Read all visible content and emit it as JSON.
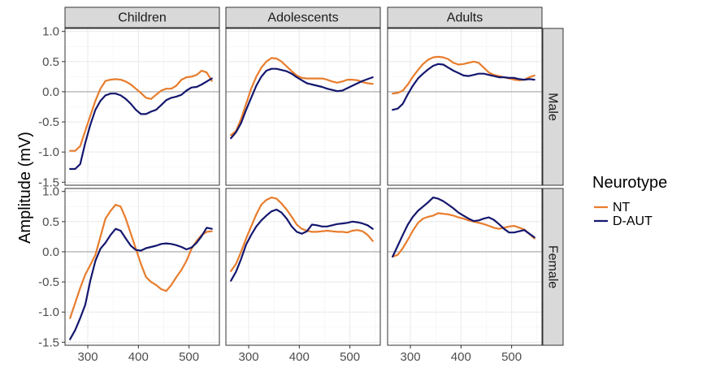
{
  "chart_data": {
    "type": "line",
    "ylabel": "Amplitude (mV)",
    "xlabel": "",
    "xlim": [
      255,
      560
    ],
    "ylim": [
      -1.55,
      1.05
    ],
    "xticks": [
      300,
      400,
      500
    ],
    "xtick_labels": [
      "300",
      "400",
      "500"
    ],
    "yticks": [
      -1.5,
      -1.0,
      -0.5,
      0.0,
      0.5,
      1.0
    ],
    "ytick_labels": [
      "-1.5",
      "-1.0",
      "-0.5",
      "0.0",
      "0.5",
      "1.0"
    ],
    "grid": true,
    "columns": [
      "Children",
      "Adolescents",
      "Adults"
    ],
    "rows": [
      "Male",
      "Female"
    ],
    "legend": {
      "title": "Neurotype",
      "position": "right",
      "entries": [
        {
          "name": "NT",
          "color": "#e87d2d"
        },
        {
          "name": "D-AUT",
          "color": "#14176e"
        }
      ]
    },
    "x": [
      265,
      275,
      285,
      295,
      305,
      315,
      325,
      335,
      345,
      355,
      365,
      375,
      385,
      395,
      405,
      415,
      425,
      435,
      445,
      455,
      465,
      475,
      485,
      495,
      505,
      515,
      525,
      535,
      545
    ],
    "panels": [
      {
        "row": "Male",
        "col": "Children",
        "series": [
          {
            "name": "NT",
            "values": [
              -0.98,
              -0.98,
              -0.9,
              -0.65,
              -0.4,
              -0.15,
              0.05,
              0.18,
              0.2,
              0.21,
              0.2,
              0.17,
              0.12,
              0.05,
              -0.02,
              -0.1,
              -0.12,
              -0.05,
              0.02,
              0.05,
              0.05,
              0.1,
              0.2,
              0.24,
              0.25,
              0.28,
              0.35,
              0.32,
              0.18
            ]
          },
          {
            "name": "D-AUT",
            "values": [
              -1.28,
              -1.28,
              -1.2,
              -0.85,
              -0.55,
              -0.3,
              -0.15,
              -0.06,
              -0.03,
              -0.03,
              -0.06,
              -0.12,
              -0.2,
              -0.3,
              -0.37,
              -0.37,
              -0.33,
              -0.3,
              -0.22,
              -0.14,
              -0.1,
              -0.08,
              -0.05,
              0.02,
              0.07,
              0.08,
              0.12,
              0.17,
              0.22
            ]
          }
        ]
      },
      {
        "row": "Male",
        "col": "Adolescents",
        "series": [
          {
            "name": "NT",
            "values": [
              -0.72,
              -0.65,
              -0.45,
              -0.2,
              0.05,
              0.25,
              0.4,
              0.5,
              0.56,
              0.55,
              0.5,
              0.42,
              0.34,
              0.27,
              0.23,
              0.22,
              0.22,
              0.22,
              0.22,
              0.2,
              0.17,
              0.15,
              0.17,
              0.2,
              0.2,
              0.19,
              0.16,
              0.14,
              0.13
            ]
          },
          {
            "name": "D-AUT",
            "values": [
              -0.77,
              -0.67,
              -0.52,
              -0.3,
              -0.1,
              0.1,
              0.25,
              0.35,
              0.38,
              0.38,
              0.36,
              0.34,
              0.3,
              0.24,
              0.19,
              0.14,
              0.12,
              0.1,
              0.08,
              0.05,
              0.03,
              0.01,
              0.02,
              0.06,
              0.1,
              0.14,
              0.18,
              0.21,
              0.24
            ]
          }
        ]
      },
      {
        "row": "Male",
        "col": "Adults",
        "series": [
          {
            "name": "NT",
            "values": [
              -0.03,
              -0.02,
              0.02,
              0.12,
              0.25,
              0.36,
              0.46,
              0.53,
              0.57,
              0.58,
              0.57,
              0.54,
              0.48,
              0.45,
              0.46,
              0.48,
              0.5,
              0.48,
              0.4,
              0.32,
              0.28,
              0.26,
              0.24,
              0.22,
              0.2,
              0.19,
              0.2,
              0.24,
              0.27
            ]
          },
          {
            "name": "D-AUT",
            "values": [
              -0.3,
              -0.28,
              -0.2,
              -0.04,
              0.1,
              0.22,
              0.3,
              0.37,
              0.43,
              0.46,
              0.45,
              0.4,
              0.35,
              0.31,
              0.27,
              0.26,
              0.28,
              0.3,
              0.3,
              0.28,
              0.26,
              0.24,
              0.24,
              0.23,
              0.23,
              0.21,
              0.2,
              0.21,
              0.2
            ]
          }
        ]
      },
      {
        "row": "Female",
        "col": "Children",
        "series": [
          {
            "name": "NT",
            "values": [
              -1.1,
              -0.85,
              -0.6,
              -0.38,
              -0.22,
              -0.05,
              0.25,
              0.55,
              0.68,
              0.78,
              0.75,
              0.55,
              0.3,
              0.05,
              -0.2,
              -0.42,
              -0.5,
              -0.55,
              -0.62,
              -0.65,
              -0.55,
              -0.42,
              -0.3,
              -0.15,
              0.05,
              0.18,
              0.28,
              0.33,
              0.34
            ]
          },
          {
            "name": "D-AUT",
            "values": [
              -1.45,
              -1.3,
              -1.1,
              -0.88,
              -0.48,
              -0.15,
              0.05,
              0.15,
              0.28,
              0.38,
              0.35,
              0.22,
              0.1,
              0.03,
              0.02,
              0.06,
              0.08,
              0.1,
              0.13,
              0.14,
              0.13,
              0.11,
              0.08,
              0.04,
              0.07,
              0.15,
              0.26,
              0.4,
              0.38
            ]
          }
        ]
      },
      {
        "row": "Female",
        "col": "Adolescents",
        "series": [
          {
            "name": "NT",
            "values": [
              -0.32,
              -0.2,
              0.0,
              0.22,
              0.42,
              0.62,
              0.78,
              0.86,
              0.9,
              0.88,
              0.8,
              0.7,
              0.58,
              0.45,
              0.38,
              0.35,
              0.33,
              0.33,
              0.34,
              0.35,
              0.34,
              0.33,
              0.33,
              0.32,
              0.35,
              0.36,
              0.34,
              0.28,
              0.18
            ]
          },
          {
            "name": "D-AUT",
            "values": [
              -0.48,
              -0.33,
              -0.12,
              0.12,
              0.28,
              0.42,
              0.52,
              0.6,
              0.67,
              0.7,
              0.65,
              0.55,
              0.42,
              0.33,
              0.3,
              0.34,
              0.45,
              0.44,
              0.42,
              0.42,
              0.44,
              0.46,
              0.47,
              0.48,
              0.5,
              0.49,
              0.47,
              0.44,
              0.38
            ]
          }
        ]
      },
      {
        "row": "Female",
        "col": "Adults",
        "series": [
          {
            "name": "NT",
            "values": [
              -0.08,
              -0.05,
              0.06,
              0.2,
              0.35,
              0.48,
              0.55,
              0.58,
              0.6,
              0.64,
              0.63,
              0.62,
              0.6,
              0.57,
              0.55,
              0.52,
              0.5,
              0.48,
              0.46,
              0.43,
              0.4,
              0.38,
              0.4,
              0.42,
              0.43,
              0.4,
              0.37,
              0.3,
              0.22
            ]
          },
          {
            "name": "D-AUT",
            "values": [
              -0.08,
              0.1,
              0.28,
              0.45,
              0.58,
              0.68,
              0.75,
              0.82,
              0.9,
              0.88,
              0.84,
              0.78,
              0.72,
              0.65,
              0.6,
              0.55,
              0.51,
              0.52,
              0.55,
              0.57,
              0.53,
              0.46,
              0.38,
              0.32,
              0.32,
              0.34,
              0.36,
              0.3,
              0.24
            ]
          }
        ]
      }
    ]
  }
}
